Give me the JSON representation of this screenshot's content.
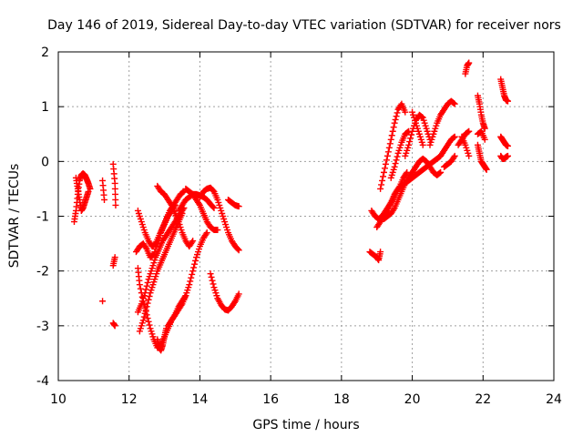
{
  "chart_data": {
    "type": "scatter",
    "title": "Day 146 of 2019, Sidereal Day-to-day VTEC variation (SDTVAR) for receiver nors",
    "xlabel": "GPS time / hours",
    "ylabel": "SDTVAR / TECUs",
    "xlim": [
      10,
      24
    ],
    "ylim": [
      -4,
      2
    ],
    "xticks": [
      10,
      12,
      14,
      16,
      18,
      20,
      22,
      24
    ],
    "yticks": [
      -4,
      -3,
      -2,
      -1,
      0,
      1,
      2
    ],
    "xtick_labels": [
      "10",
      "12",
      "14",
      "16",
      "18",
      "20",
      "22",
      "24"
    ],
    "ytick_labels": [
      "-4",
      "-3",
      "-2",
      "-1",
      "0",
      "1",
      "2"
    ],
    "grid": true,
    "marker": "+",
    "color": "#ff0000",
    "traces": [
      {
        "name": "trace-1",
        "x": [
          10.45,
          10.5,
          10.55,
          10.6,
          10.65,
          10.7,
          10.75,
          10.8,
          10.85,
          10.9
        ],
        "y": [
          -1.1,
          -0.9,
          -0.6,
          -0.35,
          -0.25,
          -0.22,
          -0.25,
          -0.32,
          -0.4,
          -0.5
        ]
      },
      {
        "name": "trace-2",
        "x": [
          10.5,
          10.55,
          10.6,
          10.65,
          10.7,
          10.75,
          10.8,
          10.85
        ],
        "y": [
          -0.3,
          -0.5,
          -0.7,
          -0.9,
          -0.85,
          -0.75,
          -0.65,
          -0.55
        ]
      },
      {
        "name": "trace-3",
        "x": [
          11.25,
          11.3
        ],
        "y": [
          -0.35,
          -0.7
        ]
      },
      {
        "name": "trace-4",
        "x": [
          11.25
        ],
        "y": [
          -2.55
        ]
      },
      {
        "name": "trace-5",
        "x": [
          11.55,
          11.6,
          11.62
        ],
        "y": [
          -0.05,
          -0.4,
          -0.8
        ]
      },
      {
        "name": "trace-6",
        "x": [
          11.55,
          11.6
        ],
        "y": [
          -1.9,
          -1.75
        ]
      },
      {
        "name": "trace-7",
        "x": [
          11.55,
          11.6
        ],
        "y": [
          -2.95,
          -3.0
        ]
      },
      {
        "name": "trace-8",
        "x": [
          12.25,
          12.35,
          12.45,
          12.55,
          12.65,
          12.75,
          12.85,
          12.95,
          13.05,
          13.15,
          13.25,
          13.35,
          13.45,
          13.55
        ],
        "y": [
          -0.9,
          -1.1,
          -1.3,
          -1.45,
          -1.55,
          -1.5,
          -1.35,
          -1.2,
          -1.05,
          -0.9,
          -0.8,
          -0.7,
          -0.6,
          -0.55
        ]
      },
      {
        "name": "trace-9",
        "x": [
          12.2,
          12.3,
          12.4,
          12.5,
          12.6,
          12.7,
          12.8,
          12.9,
          13.0,
          13.1,
          13.2,
          13.3
        ],
        "y": [
          -1.65,
          -1.55,
          -1.5,
          -1.6,
          -1.75,
          -1.7,
          -1.5,
          -1.3,
          -1.15,
          -1.0,
          -0.9,
          -0.8
        ]
      },
      {
        "name": "trace-10",
        "x": [
          12.25,
          12.3,
          12.4,
          12.5,
          12.6,
          12.7,
          12.8,
          12.9,
          13.0,
          13.1,
          13.2,
          13.3,
          13.4,
          13.5,
          13.6,
          13.7,
          13.8,
          13.9,
          14.0,
          14.1,
          14.2
        ],
        "y": [
          -1.95,
          -2.25,
          -2.55,
          -2.8,
          -3.05,
          -3.25,
          -3.4,
          -3.35,
          -3.2,
          -3.05,
          -2.9,
          -2.8,
          -2.7,
          -2.6,
          -2.45,
          -2.25,
          -2.0,
          -1.75,
          -1.55,
          -1.4,
          -1.3
        ]
      },
      {
        "name": "trace-11",
        "x": [
          12.25,
          12.35,
          12.45,
          12.55,
          12.65,
          12.75,
          12.85,
          12.95,
          13.05,
          13.15,
          13.25,
          13.35,
          13.45,
          13.55
        ],
        "y": [
          -2.75,
          -2.6,
          -2.4,
          -2.15,
          -1.95,
          -1.75,
          -1.6,
          -1.45,
          -1.35,
          -1.25,
          -1.15,
          -1.05,
          -0.95,
          -0.85
        ]
      },
      {
        "name": "trace-12",
        "x": [
          12.3,
          12.4,
          12.5,
          12.6,
          12.7,
          12.8,
          12.9,
          13.0,
          13.1,
          13.2,
          13.3,
          13.4,
          13.5
        ],
        "y": [
          -3.1,
          -2.9,
          -2.65,
          -2.4,
          -2.2,
          -2.0,
          -1.85,
          -1.7,
          -1.55,
          -1.4,
          -1.25,
          -1.1,
          -0.95
        ]
      },
      {
        "name": "trace-13",
        "x": [
          12.8,
          12.85,
          12.9,
          12.95,
          13.0,
          13.05
        ],
        "y": [
          -3.25,
          -3.4,
          -3.45,
          -3.35,
          -3.2,
          -3.05
        ]
      },
      {
        "name": "trace-14",
        "x": [
          13.1,
          13.2,
          13.3,
          13.4,
          13.5,
          13.6
        ],
        "y": [
          -3.0,
          -2.9,
          -2.8,
          -2.65,
          -2.55,
          -2.45
        ]
      },
      {
        "name": "trace-15",
        "x": [
          12.8,
          12.9,
          13.0,
          13.1,
          13.2,
          13.3,
          13.4,
          13.5,
          13.6,
          13.7,
          13.8
        ],
        "y": [
          -0.45,
          -0.55,
          -0.6,
          -0.7,
          -0.8,
          -0.95,
          -1.1,
          -1.3,
          -1.45,
          -1.55,
          -1.45
        ]
      },
      {
        "name": "trace-16",
        "x": [
          13.6,
          13.7,
          13.8,
          13.9,
          14.0,
          14.1,
          14.2,
          14.3,
          14.4,
          14.5
        ],
        "y": [
          -0.5,
          -0.55,
          -0.6,
          -0.7,
          -0.8,
          -0.95,
          -1.1,
          -1.2,
          -1.25,
          -1.25
        ]
      },
      {
        "name": "trace-17",
        "x": [
          13.4,
          13.5,
          13.6,
          13.7,
          13.8,
          13.9,
          14.0,
          14.1,
          14.2,
          14.3,
          14.4
        ],
        "y": [
          -0.9,
          -0.8,
          -0.7,
          -0.65,
          -0.6,
          -0.6,
          -0.62,
          -0.65,
          -0.7,
          -0.78,
          -0.85
        ]
      },
      {
        "name": "trace-18",
        "x": [
          14.0,
          14.1,
          14.2,
          14.3,
          14.4,
          14.5,
          14.6,
          14.7,
          14.8,
          14.9,
          15.0,
          15.1
        ],
        "y": [
          -0.65,
          -0.55,
          -0.5,
          -0.48,
          -0.55,
          -0.7,
          -0.9,
          -1.1,
          -1.3,
          -1.45,
          -1.55,
          -1.62
        ]
      },
      {
        "name": "trace-19",
        "x": [
          14.3,
          14.4,
          14.5,
          14.6,
          14.7,
          14.8,
          14.9,
          15.0,
          15.1
        ],
        "y": [
          -2.05,
          -2.3,
          -2.5,
          -2.62,
          -2.7,
          -2.72,
          -2.65,
          -2.55,
          -2.42
        ]
      },
      {
        "name": "trace-20",
        "x": [
          14.8,
          14.9,
          15.0,
          15.1
        ],
        "y": [
          -0.7,
          -0.75,
          -0.8,
          -0.82
        ]
      },
      {
        "name": "trace-21",
        "x": [
          18.8,
          18.9,
          19.0,
          19.05,
          19.1
        ],
        "y": [
          -1.65,
          -1.7,
          -1.75,
          -1.8,
          -1.65
        ]
      },
      {
        "name": "trace-22",
        "x": [
          18.85,
          18.95,
          19.05,
          19.15,
          19.25,
          19.35,
          19.45,
          19.55,
          19.65,
          19.75,
          19.85
        ],
        "y": [
          -0.9,
          -1.0,
          -1.05,
          -1.0,
          -0.9,
          -0.8,
          -0.7,
          -0.55,
          -0.45,
          -0.3,
          -0.2
        ]
      },
      {
        "name": "trace-23",
        "x": [
          19.0,
          19.1,
          19.2,
          19.3,
          19.4,
          19.5,
          19.6,
          19.7,
          19.8,
          19.9,
          20.0,
          20.1,
          20.2,
          20.3,
          20.4,
          20.5,
          20.6,
          20.7,
          20.8,
          20.9,
          21.0,
          21.1,
          21.2
        ],
        "y": [
          -1.2,
          -1.1,
          -1.0,
          -0.9,
          -0.75,
          -0.6,
          -0.5,
          -0.45,
          -0.4,
          -0.35,
          -0.3,
          -0.25,
          -0.2,
          -0.15,
          -0.1,
          -0.05,
          0.0,
          0.05,
          0.1,
          0.2,
          0.3,
          0.4,
          0.45
        ]
      },
      {
        "name": "trace-24",
        "x": [
          19.2,
          19.3,
          19.4,
          19.5,
          19.6,
          19.7,
          19.8,
          19.9,
          20.0,
          20.1,
          20.2,
          20.3,
          20.4,
          20.5,
          20.6,
          20.7,
          20.8
        ],
        "y": [
          -1.05,
          -1.0,
          -0.95,
          -0.85,
          -0.7,
          -0.55,
          -0.4,
          -0.3,
          -0.2,
          -0.1,
          0.0,
          0.05,
          0.0,
          -0.1,
          -0.2,
          -0.25,
          -0.2
        ]
      },
      {
        "name": "trace-25",
        "x": [
          19.1,
          19.2,
          19.3,
          19.4,
          19.5,
          19.6,
          19.7,
          19.8
        ],
        "y": [
          -0.5,
          -0.2,
          0.1,
          0.4,
          0.7,
          0.95,
          1.05,
          0.9
        ]
      },
      {
        "name": "trace-26",
        "x": [
          19.4,
          19.5,
          19.6,
          19.7,
          19.8,
          19.9
        ],
        "y": [
          -0.3,
          -0.1,
          0.15,
          0.35,
          0.5,
          0.55
        ]
      },
      {
        "name": "trace-27",
        "x": [
          19.8,
          19.9,
          20.0,
          20.1,
          20.2,
          20.3,
          20.4,
          20.5
        ],
        "y": [
          0.1,
          0.3,
          0.55,
          0.75,
          0.85,
          0.8,
          0.6,
          0.4
        ]
      },
      {
        "name": "trace-28",
        "x": [
          20.0,
          20.1,
          20.2,
          20.3
        ],
        "y": [
          0.9,
          0.7,
          0.5,
          0.3
        ]
      },
      {
        "name": "trace-29",
        "x": [
          20.5,
          20.6,
          20.7,
          20.8,
          20.9,
          21.0,
          21.1,
          21.2
        ],
        "y": [
          0.3,
          0.5,
          0.7,
          0.85,
          0.95,
          1.05,
          1.1,
          1.05
        ]
      },
      {
        "name": "trace-30",
        "x": [
          20.9,
          21.0,
          21.1,
          21.2
        ],
        "y": [
          -0.1,
          -0.05,
          0.0,
          0.1
        ]
      },
      {
        "name": "trace-31",
        "x": [
          21.3,
          21.4,
          21.5,
          21.6
        ],
        "y": [
          0.3,
          0.4,
          0.5,
          0.55
        ]
      },
      {
        "name": "trace-32",
        "x": [
          21.5,
          21.55,
          21.6
        ],
        "y": [
          1.6,
          1.75,
          1.8
        ]
      },
      {
        "name": "trace-33",
        "x": [
          21.4,
          21.5,
          21.6
        ],
        "y": [
          0.45,
          0.3,
          0.1
        ]
      },
      {
        "name": "trace-34",
        "x": [
          21.85,
          21.9,
          21.95,
          22.0,
          22.05
        ],
        "y": [
          1.2,
          1.05,
          0.85,
          0.7,
          0.6
        ]
      },
      {
        "name": "trace-35",
        "x": [
          21.85,
          21.9,
          21.95,
          22.0,
          22.05,
          22.1
        ],
        "y": [
          0.3,
          0.15,
          0.0,
          -0.05,
          -0.1,
          -0.15
        ]
      },
      {
        "name": "trace-36",
        "x": [
          21.85,
          21.95,
          22.05
        ],
        "y": [
          0.5,
          0.55,
          0.4
        ]
      },
      {
        "name": "trace-37",
        "x": [
          22.5,
          22.55,
          22.6,
          22.65,
          22.7
        ],
        "y": [
          1.5,
          1.35,
          1.2,
          1.12,
          1.1
        ]
      },
      {
        "name": "trace-38",
        "x": [
          22.5,
          22.55,
          22.6,
          22.65,
          22.7
        ],
        "y": [
          0.45,
          0.4,
          0.35,
          0.3,
          0.28
        ]
      },
      {
        "name": "trace-39",
        "x": [
          22.5,
          22.55,
          22.6,
          22.65,
          22.7
        ],
        "y": [
          0.1,
          0.05,
          0.05,
          0.08,
          0.1
        ]
      }
    ]
  }
}
